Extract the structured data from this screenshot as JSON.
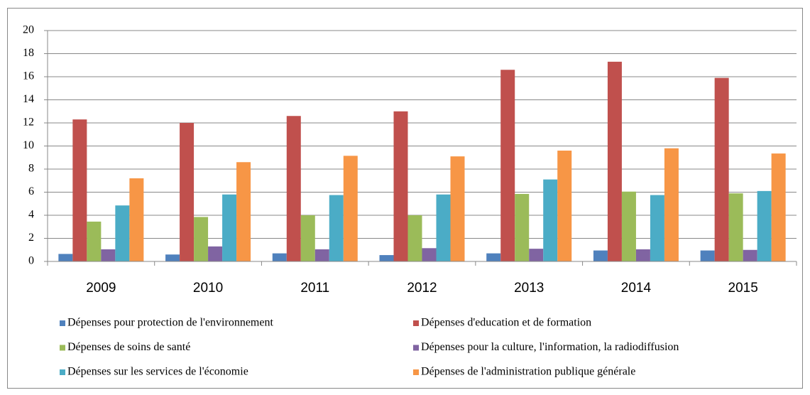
{
  "chart_data": {
    "type": "bar",
    "categories": [
      "2009",
      "2010",
      "2011",
      "2012",
      "2013",
      "2014",
      "2015"
    ],
    "series": [
      {
        "name": "Dépenses pour protection de l'environnement",
        "color": "#4f81bd",
        "values": [
          0.65,
          0.6,
          0.7,
          0.55,
          0.7,
          0.95,
          0.95
        ]
      },
      {
        "name": "Dépenses d'education et de formation",
        "color": "#c0504d",
        "values": [
          12.3,
          12.0,
          12.6,
          13.0,
          16.6,
          17.3,
          15.9
        ]
      },
      {
        "name": "Dépenses de soins de santé",
        "color": "#9bbb59",
        "values": [
          3.45,
          3.85,
          4.0,
          4.0,
          5.85,
          6.05,
          5.9
        ]
      },
      {
        "name": "Dépenses pour la culture, l'information, la radiodiffusion",
        "color": "#8064a2",
        "values": [
          1.05,
          1.3,
          1.05,
          1.15,
          1.1,
          1.05,
          1.0
        ]
      },
      {
        "name": "Dépenses sur les services de l'économie",
        "color": "#4bacc6",
        "values": [
          4.85,
          5.8,
          5.75,
          5.8,
          7.1,
          5.75,
          6.1
        ]
      },
      {
        "name": "Dépenses de l'administration publique générale",
        "color": "#f79646",
        "values": [
          7.2,
          8.6,
          9.15,
          9.1,
          9.6,
          9.8,
          9.35
        ]
      }
    ],
    "ylim": [
      0,
      20
    ],
    "yticks": [
      0,
      2,
      4,
      6,
      8,
      10,
      12,
      14,
      16,
      18,
      20
    ],
    "grid": true,
    "legend": "bottom"
  }
}
